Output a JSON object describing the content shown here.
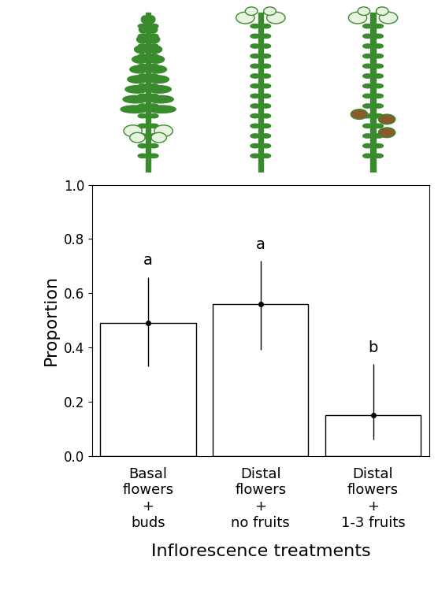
{
  "chart_data": {
    "type": "bar",
    "categories": [
      "Basal\nflowers\n+\nbuds",
      "Distal\nflowers\n+\nno fruits",
      "Distal\nflowers\n+\n1-3 fruits"
    ],
    "values": [
      0.49,
      0.56,
      0.15
    ],
    "ci_low": [
      0.33,
      0.39,
      0.06
    ],
    "ci_high": [
      0.66,
      0.72,
      0.34
    ],
    "letters": [
      "a",
      "a",
      "b"
    ],
    "color": "#ffffff",
    "x_label": "Inflorescence treatments",
    "y_label": "Proportion",
    "ylim": [
      0,
      1.0
    ],
    "yticks": [
      {
        "value": 0,
        "label": "0.0"
      },
      0.2,
      0.4,
      0.6,
      0.8,
      {
        "value": 1.0,
        "label": "1.0"
      }
    ],
    "grid": false
  }
}
